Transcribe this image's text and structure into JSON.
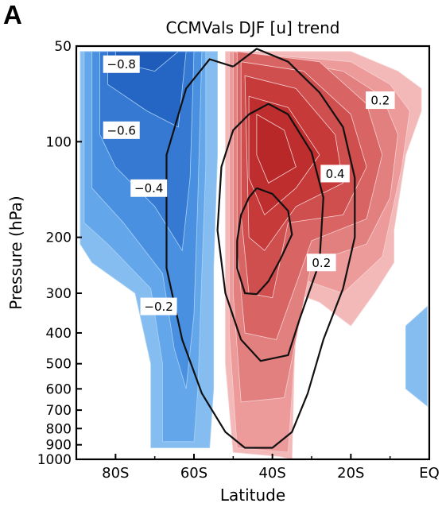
{
  "panel_label": "A",
  "chart_data": {
    "type": "heatmap",
    "title": "CCMVals DJF [u] trend",
    "xlabel": "Latitude",
    "ylabel": "Pressure (hPa)",
    "x_ticks": [
      "80S",
      "60S",
      "40S",
      "20S",
      "EQ"
    ],
    "x_tick_values": [
      -80,
      -60,
      -40,
      -20,
      0
    ],
    "xlim": [
      -90,
      0
    ],
    "y_scale": "log",
    "y_inverted": true,
    "y_ticks": [
      "50",
      "100",
      "200",
      "300",
      "400",
      "500",
      "600",
      "700",
      "800",
      "900",
      "1000"
    ],
    "y_tick_values": [
      50,
      100,
      200,
      300,
      400,
      500,
      600,
      700,
      800,
      900,
      1000
    ],
    "ylim": [
      1000,
      50
    ],
    "fill_colors": {
      "negative": [
        "#86bdf0",
        "#64a6ea",
        "#4a90e0",
        "#3579d2",
        "#2566c4",
        "#1f5bb8"
      ],
      "positive": [
        "#f3b8b8",
        "#ec9a9a",
        "#e27f7f",
        "#d96464",
        "#cf4e4e",
        "#c63a3a",
        "#be2e2e",
        "#b82828"
      ]
    },
    "filled_regions": [
      {
        "sign": "negative",
        "nested": [
          [
            [
              -89,
              52
            ],
            [
              -54,
              52
            ],
            [
              -54,
              110
            ],
            [
              -55,
              250
            ],
            [
              -55,
              600
            ],
            [
              -56,
              920
            ],
            [
              -71,
              920
            ],
            [
              -71,
              500
            ],
            [
              -75,
              300
            ],
            [
              -86,
              240
            ],
            [
              -89,
              210
            ]
          ],
          [
            [
              -88,
              52
            ],
            [
              -57,
              52
            ],
            [
              -57,
              120
            ],
            [
              -58,
              260
            ],
            [
              -59,
              600
            ],
            [
              -60,
              880
            ],
            [
              -68,
              880
            ],
            [
              -68,
              500
            ],
            [
              -71,
              290
            ],
            [
              -82,
              210
            ],
            [
              -88,
              180
            ]
          ],
          [
            [
              -86,
              52
            ],
            [
              -58,
              52
            ],
            [
              -59,
              150
            ],
            [
              -60,
              350
            ],
            [
              -62,
              600
            ],
            [
              -65,
              450
            ],
            [
              -68,
              260
            ],
            [
              -78,
              180
            ],
            [
              -86,
              140
            ]
          ],
          [
            [
              -84,
              52
            ],
            [
              -60,
              52
            ],
            [
              -61,
              130
            ],
            [
              -63,
              220
            ],
            [
              -70,
              160
            ],
            [
              -80,
              120
            ],
            [
              -84,
              95
            ]
          ],
          [
            [
              -82,
              52
            ],
            [
              -62,
              52
            ],
            [
              -64,
              90
            ],
            [
              -72,
              80
            ],
            [
              -82,
              66
            ]
          ],
          [
            [
              -80,
              52
            ],
            [
              -64,
              52
            ],
            [
              -70,
              60
            ],
            [
              -80,
              56
            ]
          ]
        ]
      },
      {
        "sign": "negative",
        "nested": [
          [
            [
              -6,
              380
            ],
            [
              -0.5,
              330
            ],
            [
              -0.5,
              680
            ],
            [
              -6,
              600
            ]
          ]
        ]
      },
      {
        "sign": "positive",
        "nested": [
          [
            [
              -52,
              52
            ],
            [
              -20,
              52
            ],
            [
              -8,
              60
            ],
            [
              -2,
              68
            ],
            [
              -2,
              80
            ],
            [
              -6,
              110
            ],
            [
              -9,
              190
            ],
            [
              -9,
              240
            ],
            [
              -14,
              300
            ],
            [
              -20,
              380
            ],
            [
              -28,
              320
            ],
            [
              -34,
              300
            ],
            [
              -35,
              1000
            ],
            [
              -38,
              980
            ],
            [
              -50,
              950
            ],
            [
              -52,
              500
            ],
            [
              -52,
              200
            ]
          ],
          [
            [
              -51,
              52
            ],
            [
              -20,
              56
            ],
            [
              -10,
              66
            ],
            [
              -5,
              80
            ],
            [
              -7,
              120
            ],
            [
              -12,
              230
            ],
            [
              -22,
              300
            ],
            [
              -33,
              270
            ],
            [
              -36,
              950
            ],
            [
              -49,
              920
            ],
            [
              -51,
              400
            ]
          ],
          [
            [
              -50,
              52
            ],
            [
              -22,
              60
            ],
            [
              -12,
              72
            ],
            [
              -8,
              95
            ],
            [
              -10,
              150
            ],
            [
              -16,
              210
            ],
            [
              -30,
              240
            ],
            [
              -37,
              640
            ],
            [
              -48,
              660
            ],
            [
              -50,
              300
            ]
          ],
          [
            [
              -49,
              52
            ],
            [
              -28,
              56
            ],
            [
              -16,
              76
            ],
            [
              -12,
              110
            ],
            [
              -16,
              175
            ],
            [
              -30,
              205
            ],
            [
              -39,
              420
            ],
            [
              -47,
              400
            ],
            [
              -49,
              220
            ]
          ],
          [
            [
              -48,
              56
            ],
            [
              -32,
              60
            ],
            [
              -20,
              82
            ],
            [
              -16,
              120
            ],
            [
              -22,
              170
            ],
            [
              -36,
              180
            ],
            [
              -40,
              310
            ],
            [
              -46,
              300
            ],
            [
              -48,
              170
            ]
          ],
          [
            [
              -47,
              62
            ],
            [
              -34,
              68
            ],
            [
              -24,
              95
            ],
            [
              -22,
              135
            ],
            [
              -34,
              160
            ],
            [
              -42,
              220
            ],
            [
              -46,
              200
            ]
          ],
          [
            [
              -46,
              72
            ],
            [
              -36,
              78
            ],
            [
              -28,
              110
            ],
            [
              -34,
              140
            ],
            [
              -42,
              170
            ],
            [
              -46,
              130
            ]
          ],
          [
            [
              -44,
              82
            ],
            [
              -37,
              92
            ],
            [
              -34,
              120
            ],
            [
              -41,
              135
            ],
            [
              -44,
              110
            ]
          ]
        ]
      }
    ],
    "contour_lines": [
      {
        "value": 0.2,
        "points": [
          [
            -50,
            58
          ],
          [
            -44,
            51
          ],
          [
            -36,
            56
          ],
          [
            -28,
            70
          ],
          [
            -22,
            90
          ],
          [
            -19,
            130
          ],
          [
            -19,
            200
          ],
          [
            -22,
            290
          ],
          [
            -27,
            420
          ],
          [
            -31,
            620
          ],
          [
            -35,
            820
          ],
          [
            -40,
            920
          ],
          [
            -47,
            920
          ],
          [
            -52,
            820
          ],
          [
            -58,
            620
          ],
          [
            -63,
            420
          ],
          [
            -67,
            250
          ],
          [
            -67,
            110
          ],
          [
            -62,
            68
          ],
          [
            -56,
            55
          ],
          [
            -50,
            58
          ]
        ]
      },
      {
        "value": 0.4,
        "points": [
          [
            -46,
            82
          ],
          [
            -41,
            76
          ],
          [
            -36,
            82
          ],
          [
            -30,
            108
          ],
          [
            -27,
            150
          ],
          [
            -28,
            240
          ],
          [
            -33,
            360
          ],
          [
            -36,
            470
          ],
          [
            -43,
            490
          ],
          [
            -48,
            420
          ],
          [
            -52,
            300
          ],
          [
            -54,
            190
          ],
          [
            -53,
            120
          ],
          [
            -50,
            92
          ],
          [
            -46,
            82
          ]
        ]
      },
      {
        "value": 0.6,
        "points": [
          [
            -44,
            140
          ],
          [
            -40,
            146
          ],
          [
            -36,
            165
          ],
          [
            -35,
            196
          ],
          [
            -38,
            235
          ],
          [
            -41,
            275
          ],
          [
            -44,
            302
          ],
          [
            -47,
            300
          ],
          [
            -49,
            250
          ],
          [
            -49,
            205
          ],
          [
            -48,
            170
          ],
          [
            -46,
            150
          ],
          [
            -44,
            140
          ]
        ]
      }
    ],
    "contour_labels": [
      {
        "text": "-0.8",
        "lat": -78.5,
        "p": 57
      },
      {
        "text": "-0.6",
        "lat": -78.5,
        "p": 92
      },
      {
        "text": "-0.4",
        "lat": -71.5,
        "p": 140
      },
      {
        "text": "-0.2",
        "lat": -69,
        "p": 330
      },
      {
        "text": "0.2",
        "lat": -12.5,
        "p": 74
      },
      {
        "text": "0.4",
        "lat": -24,
        "p": 126
      },
      {
        "text": "0.2",
        "lat": -27.5,
        "p": 240
      }
    ]
  }
}
